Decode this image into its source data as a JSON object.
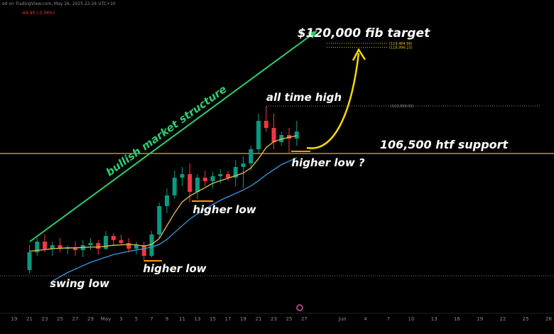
{
  "chart_data": {
    "type": "candlestick",
    "header": "ed on TradingView.com, May 26, 2025 22:24 UTC+10",
    "change": "-69.95 (-0.06%)",
    "categories": [
      "19",
      null,
      "21",
      null,
      "23",
      null,
      "25",
      null,
      "27",
      null,
      "29",
      null,
      "May",
      null,
      "3",
      null,
      "5",
      null,
      "7",
      null,
      "9",
      null,
      "11",
      null,
      "13",
      null,
      "15",
      null,
      "17",
      null,
      "19",
      null,
      "21",
      null,
      "23",
      null,
      "25",
      null,
      "27"
    ],
    "future_ticks": [
      "Jun",
      "4",
      "7",
      "10",
      "13",
      "16",
      "19",
      "22",
      "25",
      "28"
    ],
    "ylim": [
      85266,
      124558
    ],
    "up_color": "#089981",
    "down_color": "#f23645",
    "open": [
      null,
      null,
      92790,
      94880,
      96134,
      95298,
      95716,
      95298,
      95465,
      95131,
      95716,
      95967,
      95298,
      96803,
      96301,
      95967,
      95298,
      95716,
      94462,
      96970,
      100314,
      101568,
      103658,
      104076,
      101986,
      103658,
      103240,
      103825,
      104076,
      103658,
      104912,
      105330,
      107002,
      110346,
      109510,
      107838,
      108674,
      108256,
      null
    ],
    "high": [
      null,
      null,
      95716,
      96552,
      96970,
      96134,
      96552,
      95716,
      96134,
      96301,
      96552,
      96301,
      97388,
      97137,
      96970,
      96552,
      96134,
      96134,
      97388,
      100732,
      102404,
      104494,
      104912,
      105330,
      104076,
      104494,
      104327,
      104662,
      104494,
      105748,
      106166,
      107420,
      111182,
      112099,
      111182,
      109092,
      109510,
      110346,
      null
    ],
    "low": [
      null,
      null,
      92372,
      94462,
      94880,
      94462,
      94880,
      94629,
      94462,
      94295,
      95131,
      94629,
      95131,
      95716,
      95716,
      94880,
      94629,
      93793,
      94295,
      96552,
      99478,
      101150,
      102655,
      100732,
      101150,
      102655,
      102404,
      102989,
      103240,
      102655,
      102404,
      104494,
      106584,
      109092,
      107002,
      107420,
      106584,
      107420,
      null
    ],
    "close": [
      null,
      null,
      94880,
      96134,
      95298,
      95716,
      95298,
      95465,
      95131,
      95716,
      95967,
      95298,
      96803,
      96301,
      95967,
      95298,
      95716,
      94462,
      96970,
      100314,
      101568,
      103658,
      104076,
      101986,
      103658,
      103240,
      103825,
      104076,
      103658,
      104912,
      105330,
      107002,
      110346,
      109510,
      107838,
      108674,
      108256,
      109092,
      null
    ],
    "series": [
      {
        "color": "#e8c15a",
        "values": [
          null,
          null,
          95000,
          95100,
          95200,
          95300,
          95350,
          95400,
          95400,
          95450,
          95500,
          95500,
          95600,
          95700,
          95750,
          95800,
          95750,
          95600,
          95800,
          96500,
          98000,
          99500,
          100800,
          101500,
          102000,
          102500,
          103000,
          103300,
          103600,
          103900,
          104200,
          104800,
          105900,
          107200,
          107900,
          108200,
          108400,
          108600,
          null
        ]
      },
      {
        "color": "#3a9ad9",
        "values": [
          null,
          null,
          null,
          null,
          null,
          91500,
          92000,
          92500,
          92900,
          93300,
          93700,
          94000,
          94300,
          94600,
          94800,
          95000,
          95150,
          95300,
          95500,
          95800,
          96400,
          97200,
          98000,
          98800,
          99400,
          100000,
          100500,
          101000,
          101400,
          101800,
          102200,
          102700,
          103300,
          104000,
          104600,
          105200,
          105600,
          106000,
          null
        ]
      }
    ],
    "levels": [
      {
        "value": 112098.9,
        "label": "(112,098.90)"
      },
      {
        "value": 119464.99,
        "label": "(119,464.99)"
      },
      {
        "value": 118996.23,
        "label": "(118,996.23)"
      }
    ],
    "support": 106500,
    "reference_level": 92120,
    "annotations": {
      "fib_target": "$120,000 fib target",
      "ath": "all time high",
      "structure": "bullish market structure",
      "support": "106,500 htf support",
      "higher_low_next": "higher low ?",
      "higher_low_2": "higher low",
      "higher_low_1": "higher low",
      "swing_low": "swing low"
    }
  }
}
